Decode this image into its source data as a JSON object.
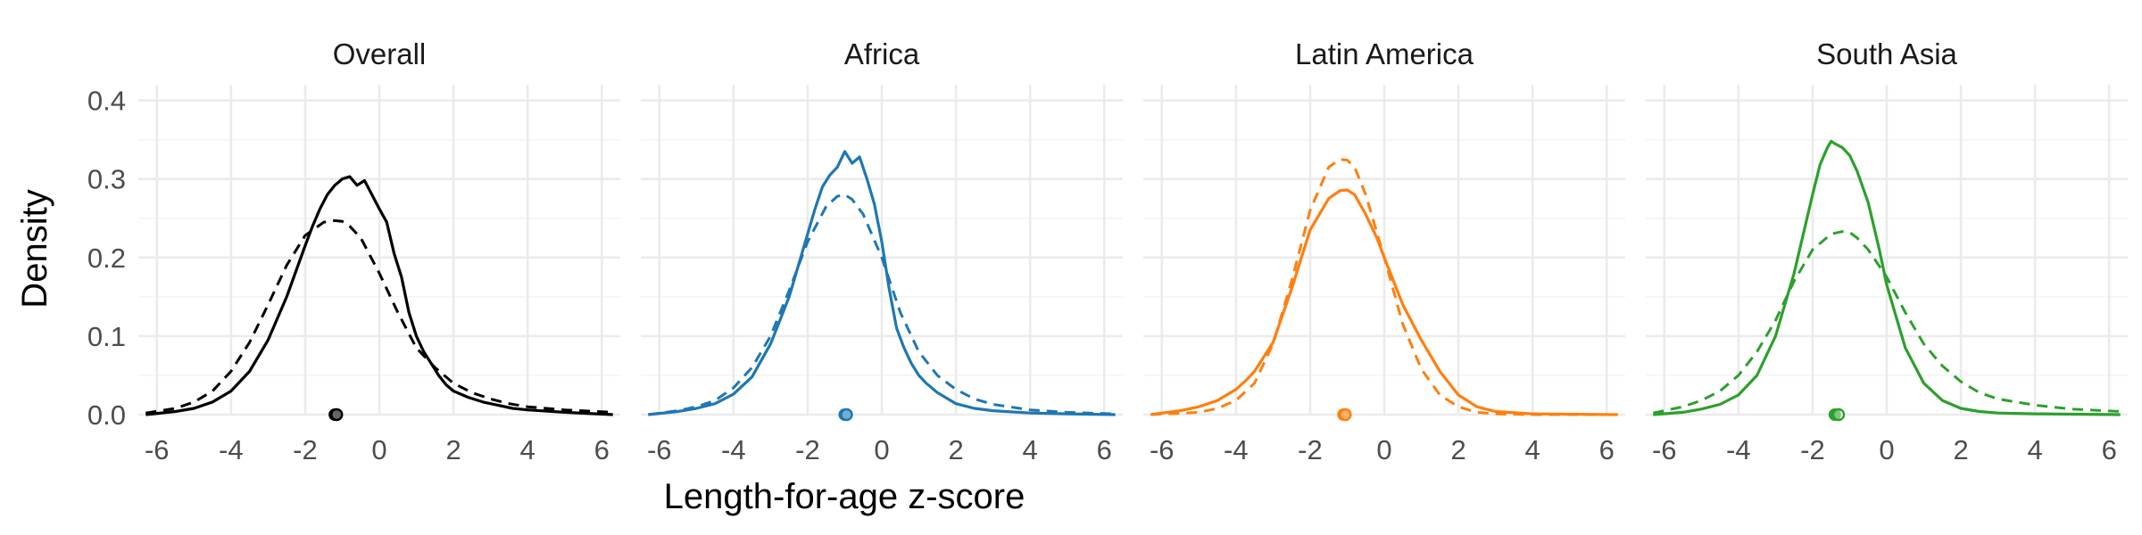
{
  "chart_data": {
    "type": "line",
    "kind": "faceted density plot",
    "xlabel": "Length-for-age z-score",
    "ylabel": "Density",
    "xlim": [
      -6.5,
      6.5
    ],
    "ylim": [
      0,
      0.42
    ],
    "x_ticks": [
      -6,
      -4,
      -2,
      0,
      2,
      4,
      6
    ],
    "y_ticks": [
      0.0,
      0.1,
      0.2,
      0.3,
      0.4
    ],
    "y_tick_labels": [
      "0.0",
      "0.1",
      "0.2",
      "0.3",
      "0.4"
    ],
    "grid": true,
    "legend": "none",
    "line_styles": {
      "observed": "solid",
      "reference": "dashed"
    },
    "facets": [
      {
        "title": "Overall",
        "color": "#000000",
        "solid": {
          "x": [
            -6.3,
            -5.5,
            -5,
            -4.5,
            -4,
            -3.5,
            -3,
            -2.5,
            -2,
            -1.8,
            -1.6,
            -1.4,
            -1.2,
            -1.0,
            -0.8,
            -0.6,
            -0.4,
            -0.2,
            0.0,
            0.2,
            0.4,
            0.6,
            0.8,
            1.0,
            1.2,
            1.4,
            1.6,
            1.8,
            2.0,
            2.4,
            2.8,
            3.2,
            3.6,
            4.0,
            5.0,
            6.3
          ],
          "y": [
            0.0,
            0.004,
            0.008,
            0.016,
            0.03,
            0.055,
            0.095,
            0.15,
            0.215,
            0.24,
            0.262,
            0.28,
            0.292,
            0.3,
            0.303,
            0.292,
            0.298,
            0.28,
            0.262,
            0.245,
            0.205,
            0.175,
            0.13,
            0.1,
            0.08,
            0.065,
            0.05,
            0.038,
            0.03,
            0.022,
            0.016,
            0.012,
            0.008,
            0.006,
            0.003,
            0.0
          ]
        },
        "dashed": {
          "x": [
            -6.3,
            -5.5,
            -5,
            -4.5,
            -4,
            -3.5,
            -3,
            -2.5,
            -2,
            -1.5,
            -1.2,
            -1.0,
            -0.8,
            -0.5,
            0,
            0.5,
            1,
            1.5,
            2,
            2.5,
            3,
            3.5,
            4,
            5,
            6.3
          ],
          "y": [
            0.002,
            0.008,
            0.016,
            0.03,
            0.055,
            0.092,
            0.14,
            0.19,
            0.228,
            0.245,
            0.247,
            0.246,
            0.24,
            0.225,
            0.18,
            0.13,
            0.085,
            0.06,
            0.04,
            0.028,
            0.02,
            0.014,
            0.01,
            0.006,
            0.003
          ]
        },
        "points": {
          "solid_mean": -1.2,
          "dashed_mean": -1.15,
          "y": 0.0
        }
      },
      {
        "title": "Africa",
        "color": "#1f77b4",
        "solid": {
          "x": [
            -6.3,
            -5.5,
            -5,
            -4.5,
            -4,
            -3.5,
            -3,
            -2.5,
            -2,
            -1.8,
            -1.6,
            -1.4,
            -1.2,
            -1.0,
            -0.8,
            -0.6,
            -0.4,
            -0.2,
            0.0,
            0.2,
            0.4,
            0.6,
            0.8,
            1.0,
            1.2,
            1.5,
            2.0,
            2.5,
            3.0,
            4.0,
            5.0,
            6.3
          ],
          "y": [
            0.0,
            0.004,
            0.008,
            0.014,
            0.026,
            0.048,
            0.09,
            0.15,
            0.23,
            0.262,
            0.29,
            0.305,
            0.315,
            0.335,
            0.32,
            0.328,
            0.3,
            0.268,
            0.22,
            0.16,
            0.11,
            0.085,
            0.065,
            0.05,
            0.04,
            0.028,
            0.014,
            0.008,
            0.005,
            0.002,
            0.001,
            0.0
          ]
        },
        "dashed": {
          "x": [
            -6.3,
            -5.5,
            -5,
            -4.5,
            -4,
            -3.5,
            -3,
            -2.5,
            -2,
            -1.5,
            -1.2,
            -1.0,
            -0.8,
            -0.5,
            0,
            0.5,
            1,
            1.5,
            2,
            2.5,
            3,
            4,
            5,
            6.3
          ],
          "y": [
            0.0,
            0.005,
            0.01,
            0.018,
            0.034,
            0.06,
            0.1,
            0.158,
            0.22,
            0.265,
            0.278,
            0.28,
            0.274,
            0.255,
            0.2,
            0.13,
            0.08,
            0.05,
            0.032,
            0.02,
            0.013,
            0.006,
            0.003,
            0.001
          ]
        },
        "points": {
          "solid_mean": -1.0,
          "dashed_mean": -0.95,
          "y": 0.0
        }
      },
      {
        "title": "Latin America",
        "color": "#ff7f0e",
        "solid": {
          "x": [
            -6.3,
            -5.5,
            -5,
            -4.5,
            -4,
            -3.7,
            -3.5,
            -3,
            -2.5,
            -2,
            -1.5,
            -1.2,
            -1.0,
            -0.8,
            -0.5,
            -0.2,
            0,
            0.5,
            1,
            1.5,
            2,
            2.5,
            3,
            4,
            6.3
          ],
          "y": [
            0.0,
            0.005,
            0.01,
            0.018,
            0.032,
            0.045,
            0.055,
            0.092,
            0.16,
            0.235,
            0.275,
            0.285,
            0.286,
            0.28,
            0.255,
            0.225,
            0.2,
            0.14,
            0.095,
            0.055,
            0.025,
            0.01,
            0.004,
            0.001,
            0.0
          ]
        },
        "dashed": {
          "x": [
            -6.3,
            -5,
            -4.5,
            -4,
            -3.5,
            -3,
            -2.5,
            -2,
            -1.5,
            -1.2,
            -1.0,
            -0.8,
            -0.5,
            0,
            0.5,
            1,
            1.5,
            2,
            2.5,
            3,
            4,
            6.3
          ],
          "y": [
            0.0,
            0.003,
            0.008,
            0.018,
            0.04,
            0.09,
            0.17,
            0.26,
            0.315,
            0.325,
            0.324,
            0.315,
            0.28,
            0.2,
            0.115,
            0.058,
            0.025,
            0.01,
            0.003,
            0.001,
            0.0,
            0.0
          ]
        },
        "points": {
          "solid_mean": -1.1,
          "dashed_mean": -1.05,
          "y": 0.0
        }
      },
      {
        "title": "South Asia",
        "color": "#2ca02c",
        "solid": {
          "x": [
            -6.3,
            -5.5,
            -5,
            -4.5,
            -4,
            -3.5,
            -3,
            -2.5,
            -2,
            -1.8,
            -1.6,
            -1.5,
            -1.4,
            -1.2,
            -1.0,
            -0.8,
            -0.5,
            -0.2,
            0,
            0.5,
            1,
            1.5,
            2,
            2.5,
            3,
            4,
            6.3
          ],
          "y": [
            0.0,
            0.003,
            0.007,
            0.013,
            0.025,
            0.05,
            0.1,
            0.18,
            0.28,
            0.318,
            0.34,
            0.348,
            0.345,
            0.34,
            0.33,
            0.31,
            0.27,
            0.21,
            0.165,
            0.085,
            0.04,
            0.018,
            0.008,
            0.004,
            0.002,
            0.001,
            0.0
          ]
        },
        "dashed": {
          "x": [
            -6.3,
            -5.5,
            -5,
            -4.5,
            -4,
            -3.5,
            -3,
            -2.5,
            -2,
            -1.5,
            -1.2,
            -1.0,
            -0.8,
            -0.5,
            0,
            0.5,
            1,
            1.5,
            2,
            2.5,
            3,
            4,
            5,
            6.3
          ],
          "y": [
            0.002,
            0.01,
            0.018,
            0.03,
            0.05,
            0.08,
            0.12,
            0.17,
            0.21,
            0.23,
            0.233,
            0.232,
            0.225,
            0.21,
            0.175,
            0.13,
            0.09,
            0.062,
            0.042,
            0.028,
            0.02,
            0.012,
            0.007,
            0.004
          ]
        },
        "points": {
          "solid_mean": -1.4,
          "dashed_mean": -1.3,
          "y": 0.0
        }
      }
    ]
  }
}
